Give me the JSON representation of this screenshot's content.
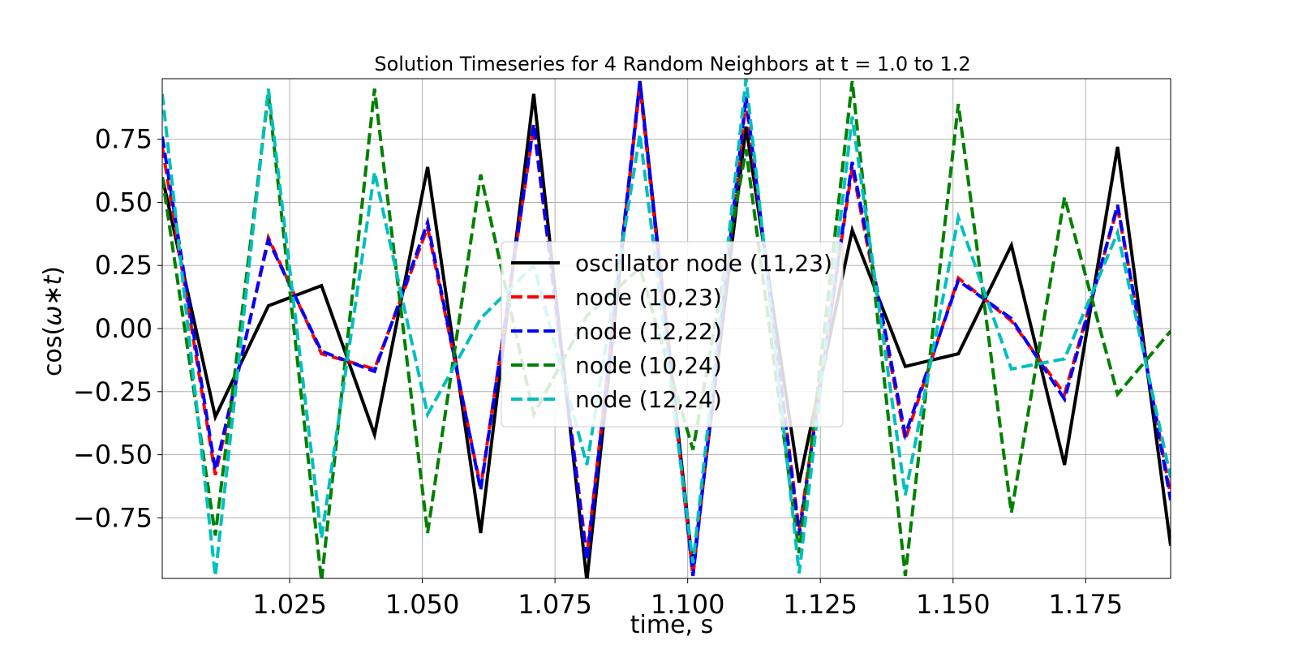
{
  "chart_data": {
    "type": "line",
    "title": "Solution Timeseries for 4 Random Neighbors at t = 1.0 to 1.2",
    "xlabel": "time, s",
    "ylabel_prefix": "cos(",
    "ylabel_omega": "ω",
    "ylabel_star": "∗",
    "ylabel_t": "t",
    "ylabel_suffix": ")",
    "xlim": [
      1.001,
      1.191
    ],
    "ylim": [
      -0.99,
      0.99
    ],
    "xticks": [
      1.025,
      1.05,
      1.075,
      1.1,
      1.125,
      1.15,
      1.175
    ],
    "xtick_labels": [
      "1.025",
      "1.050",
      "1.075",
      "1.100",
      "1.125",
      "1.150",
      "1.175"
    ],
    "yticks": [
      0.75,
      0.5,
      0.25,
      0.0,
      -0.25,
      -0.5,
      -0.75
    ],
    "ytick_labels": [
      "0.75",
      "0.50",
      "0.25",
      "0.00",
      "−0.25",
      "−0.50",
      "−0.75"
    ],
    "grid": true,
    "legend_position": "center",
    "x": [
      1.001,
      1.011,
      1.021,
      1.031,
      1.041,
      1.051,
      1.061,
      1.071,
      1.081,
      1.091,
      1.101,
      1.111,
      1.121,
      1.131,
      1.141,
      1.151,
      1.161,
      1.171,
      1.181,
      1.191
    ],
    "series": [
      {
        "name": "oscillator node (11,23)",
        "color": "#000000",
        "dash": "solid",
        "values": [
          0.6,
          -0.35,
          0.09,
          0.17,
          -0.42,
          0.64,
          -0.81,
          0.93,
          -1.0,
          0.98,
          -0.95,
          0.8,
          -0.61,
          0.39,
          -0.15,
          -0.1,
          0.33,
          -0.54,
          0.72,
          -0.86
        ]
      },
      {
        "name": "node (10,23)",
        "color": "#ff0000",
        "dash": "dashed",
        "values": [
          0.72,
          -0.58,
          0.36,
          -0.1,
          -0.16,
          0.4,
          -0.63,
          0.8,
          -0.9,
          0.96,
          -0.98,
          0.9,
          -0.8,
          0.64,
          -0.44,
          0.2,
          0.03,
          -0.26,
          0.48,
          -0.66
        ]
      },
      {
        "name": "node (12,22)",
        "color": "#0000ff",
        "dash": "dashed",
        "values": [
          0.76,
          -0.56,
          0.35,
          -0.09,
          -0.17,
          0.42,
          -0.64,
          0.81,
          -0.92,
          0.98,
          -0.98,
          0.92,
          -0.82,
          0.66,
          -0.42,
          0.19,
          0.04,
          -0.28,
          0.49,
          -0.68
        ]
      },
      {
        "name": "node (10,24)",
        "color": "#008000",
        "dash": "dashed",
        "values": [
          0.6,
          -0.82,
          0.93,
          -1.0,
          0.95,
          -0.81,
          0.61,
          -0.34,
          0.05,
          0.24,
          -0.48,
          0.71,
          -0.89,
          0.98,
          -0.98,
          0.89,
          -0.73,
          0.52,
          -0.26,
          -0.01
        ]
      },
      {
        "name": "node (12,24)",
        "color": "#00bfbf",
        "dash": "dashed",
        "values": [
          0.93,
          -0.98,
          0.95,
          -0.83,
          0.62,
          -0.34,
          0.04,
          0.25,
          -0.54,
          0.77,
          -0.93,
          0.99,
          -0.97,
          0.84,
          -0.66,
          0.44,
          -0.16,
          -0.12,
          0.38,
          -0.59
        ]
      }
    ]
  }
}
